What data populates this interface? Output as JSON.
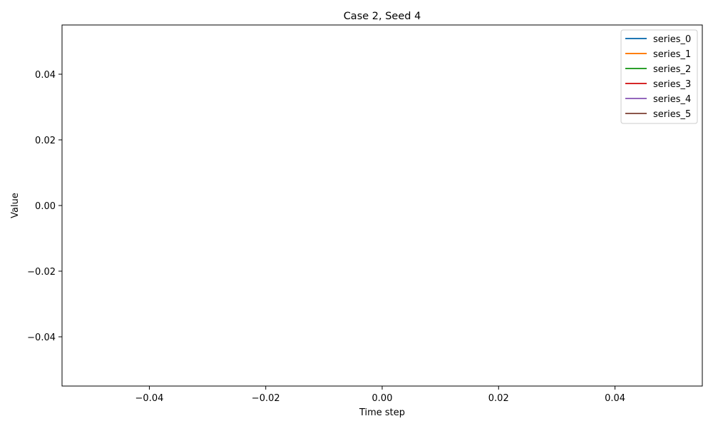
{
  "chart_data": {
    "type": "line",
    "title": "Case 2, Seed 4",
    "xlabel": "Time step",
    "ylabel": "Value",
    "xlim": [
      -0.055,
      0.055
    ],
    "ylim": [
      -0.055,
      0.055
    ],
    "xticks": [
      -0.04,
      -0.02,
      0.0,
      0.02,
      0.04
    ],
    "xtick_labels": [
      "−0.04",
      "−0.02",
      "0.00",
      "0.02",
      "0.04"
    ],
    "yticks": [
      -0.04,
      -0.02,
      0.0,
      0.02,
      0.04
    ],
    "ytick_labels": [
      "−0.04",
      "−0.02",
      "0.00",
      "0.02",
      "0.04"
    ],
    "grid": false,
    "legend_position": "top-right",
    "series": [
      {
        "name": "series_0",
        "color": "#1f77b4",
        "x": [],
        "y": []
      },
      {
        "name": "series_1",
        "color": "#ff7f0e",
        "x": [],
        "y": []
      },
      {
        "name": "series_2",
        "color": "#2ca02c",
        "x": [],
        "y": []
      },
      {
        "name": "series_3",
        "color": "#d62728",
        "x": [],
        "y": []
      },
      {
        "name": "series_4",
        "color": "#9467bd",
        "x": [],
        "y": []
      },
      {
        "name": "series_5",
        "color": "#8c564b",
        "x": [],
        "y": []
      }
    ]
  }
}
